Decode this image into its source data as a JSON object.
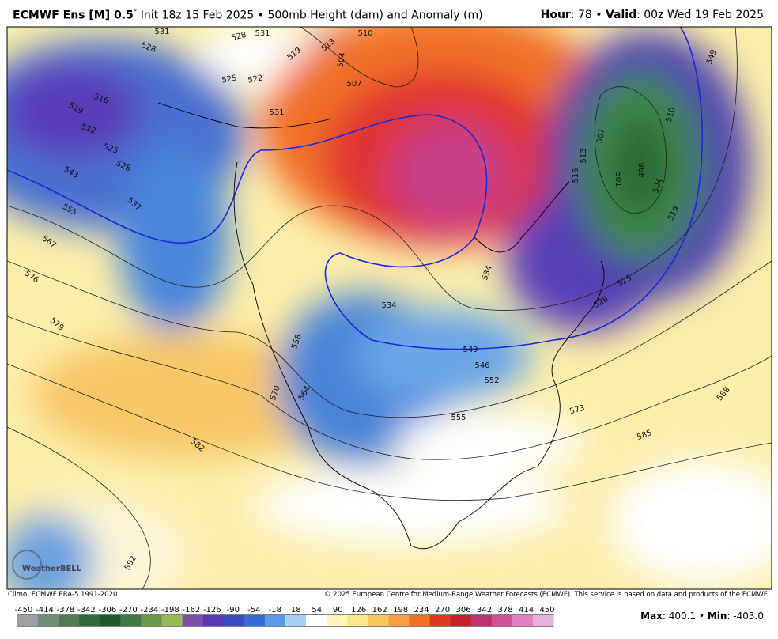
{
  "header": {
    "title_bold": "ECMWF Ens [M] 0.5",
    "degree": "°",
    "title_rest": "Init 18z 15 Feb 2025 • 500mb Height (dam) and Anomaly (m)",
    "hour_key": "Hour",
    "hour_val": ": 78 • ",
    "valid_key": "Valid",
    "valid_val": ": 00z Wed 19 Feb 2025"
  },
  "map": {
    "contour_labels": [
      "531",
      "528",
      "531",
      "528",
      "519",
      "513",
      "510",
      "504",
      "507",
      "525",
      "522",
      "516",
      "519",
      "522",
      "525",
      "528",
      "543",
      "537",
      "555",
      "567",
      "576",
      "579",
      "531",
      "549",
      "510",
      "507",
      "513",
      "516",
      "501",
      "498",
      "504",
      "519",
      "525",
      "528",
      "534",
      "534",
      "558",
      "564",
      "570",
      "546",
      "549",
      "552",
      "555",
      "573",
      "585",
      "588",
      "582",
      "582"
    ],
    "logo": "WeatherBELL"
  },
  "footer": {
    "climo": "Climo: ECMWF ERA-5 1991-2020",
    "copyright": "© 2025 European Centre for Medium-Range Weather Forecasts (ECMWF). This service is based on data and products of the ECMWF.",
    "max_key": "Max",
    "max_val": ": 400.1 • ",
    "min_key": "Min",
    "min_val": ": -403.0"
  },
  "colorbar": {
    "ticks": [
      "-450",
      "-414",
      "-378",
      "-342",
      "-306",
      "-270",
      "-234",
      "-198",
      "-162",
      "-126",
      "-90",
      "-54",
      "-18",
      "18",
      "54",
      "90",
      "126",
      "162",
      "198",
      "234",
      "270",
      "306",
      "342",
      "378",
      "414",
      "450"
    ],
    "colors": [
      "#9aa0a6",
      "#6e8f72",
      "#4f7a52",
      "#2f6a3a",
      "#1f5a2c",
      "#3b7a40",
      "#6a9a4a",
      "#9ab85a",
      "#7a50a8",
      "#5a3ab0",
      "#3b4ac0",
      "#3a6ad8",
      "#5a9ae8",
      "#a8d0f4",
      "#ffffff",
      "#fff6c0",
      "#fde58a",
      "#fbc860",
      "#f8a040",
      "#f07028",
      "#e03820",
      "#c82028",
      "#c0306a",
      "#d0509a",
      "#e080c0",
      "#e8b0d8"
    ]
  }
}
